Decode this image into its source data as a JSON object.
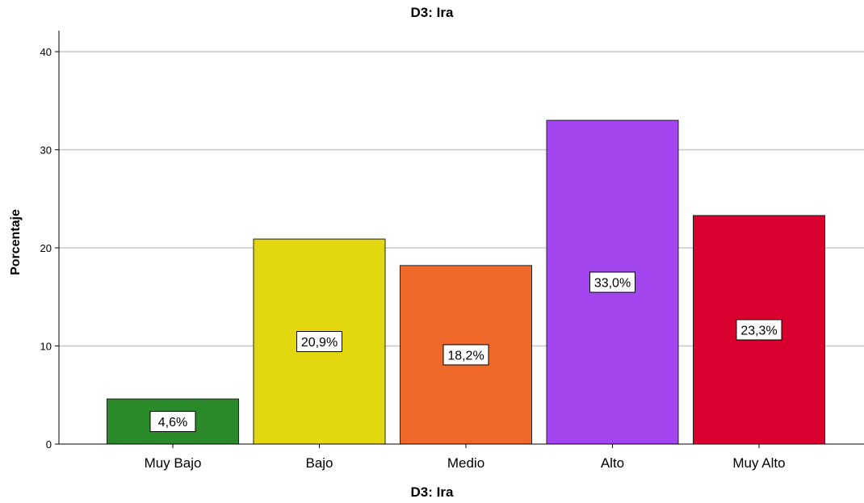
{
  "chart_data": {
    "type": "bar",
    "title": "D3: Ira",
    "xlabel": "D3: Ira",
    "ylabel": "Porcentaje",
    "categories": [
      "Muy Bajo",
      "Bajo",
      "Medio",
      "Alto",
      "Muy Alto"
    ],
    "values": [
      4.6,
      20.9,
      18.2,
      33.0,
      23.3
    ],
    "data_labels": [
      "4,6%",
      "20,9%",
      "18,2%",
      "33,0%",
      "23,3%"
    ],
    "colors": [
      "#2a8a2a",
      "#e3d80f",
      "#f0682a",
      "#a446f0",
      "#d9002f"
    ],
    "yticks": [
      0,
      10,
      20,
      30,
      40
    ],
    "ylim": [
      0,
      40
    ],
    "grid": true,
    "legend": "none"
  }
}
